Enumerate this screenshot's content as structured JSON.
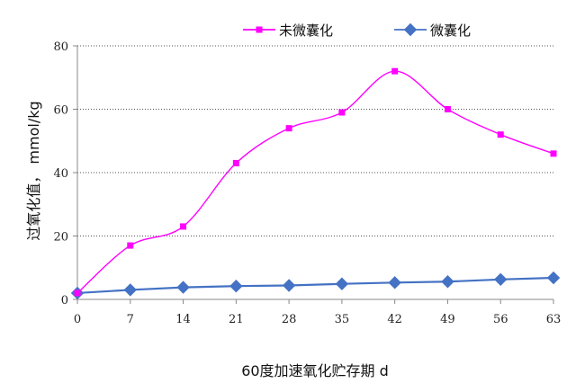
{
  "chart_data": {
    "type": "line",
    "title": "",
    "xlabel": "60度加速氧化贮存期 d",
    "ylabel": "过氧化值， mmol/kg",
    "x": [
      0,
      7,
      14,
      21,
      28,
      35,
      42,
      49,
      56,
      63
    ],
    "xlim": [
      0,
      63
    ],
    "ylim": [
      0,
      80
    ],
    "y_ticks": [
      0,
      20,
      40,
      60,
      80
    ],
    "grid": "horizontal dotted",
    "legend_position": "top",
    "series": [
      {
        "name": "未微囊化",
        "color": "#ff00ff",
        "marker": "square",
        "smooth": true,
        "values": [
          2,
          17,
          23,
          43,
          54,
          59,
          72,
          60,
          52,
          46
        ]
      },
      {
        "name": "微囊化",
        "color": "#4472c4",
        "marker": "diamond",
        "smooth": false,
        "values": [
          2,
          3,
          3.8,
          4.2,
          4.4,
          4.9,
          5.3,
          5.6,
          6.3,
          6.8
        ]
      }
    ]
  }
}
